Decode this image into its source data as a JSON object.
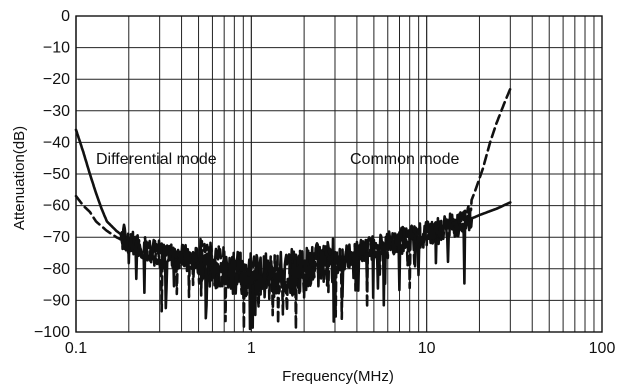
{
  "chart_data": {
    "type": "line",
    "title": "",
    "xlabel": "Frequency(MHz)",
    "ylabel": "Attenuation(dB)",
    "x_scale": "log",
    "xlim": [
      0.1,
      100
    ],
    "ylim": [
      -100,
      0
    ],
    "x_tick_labels": [
      "0.1",
      "1",
      "10",
      "100"
    ],
    "x_tick_values": [
      0.1,
      1,
      10,
      100
    ],
    "y_tick_labels": [
      "0",
      "−10",
      "−20",
      "−30",
      "−40",
      "−50",
      "−60",
      "−70",
      "−80",
      "−90",
      "−100"
    ],
    "y_tick_values": [
      0,
      -10,
      -20,
      -30,
      -40,
      -50,
      -60,
      -70,
      -80,
      -90,
      -100
    ],
    "grid": true,
    "legend": "none",
    "annotations": [
      "Differential mode",
      "Common mode"
    ],
    "series": [
      {
        "style": "solid",
        "color": "#111111",
        "x": [
          0.1,
          0.11,
          0.12,
          0.13,
          0.14,
          0.15,
          0.17,
          0.2,
          0.25,
          0.3,
          0.4,
          0.5,
          0.6,
          0.7,
          0.8,
          1.0,
          1.2,
          1.5,
          2.0,
          2.5,
          3.0,
          4.0,
          5.0,
          6.0,
          8.0,
          10,
          12,
          15,
          20,
          25,
          30
        ],
        "y": [
          -36,
          -43,
          -50,
          -56,
          -61,
          -65,
          -68,
          -71,
          -73,
          -75,
          -76,
          -77,
          -79,
          -80,
          -81,
          -82,
          -82,
          -81,
          -80,
          -78,
          -77,
          -75,
          -73,
          -72,
          -70,
          -69,
          -67,
          -66,
          -63,
          -61,
          -59
        ]
      },
      {
        "style": "dashed",
        "color": "#111111",
        "x": [
          0.1,
          0.11,
          0.12,
          0.13,
          0.15,
          0.17,
          0.2,
          0.25,
          0.3,
          0.4,
          0.5,
          0.6,
          0.7,
          0.8,
          1.0,
          1.2,
          1.5,
          2.0,
          2.5,
          3.0,
          4.0,
          5.0,
          6.0,
          8.0,
          10,
          12,
          15,
          17,
          19,
          21,
          23,
          25,
          28,
          30
        ],
        "y": [
          -57,
          -60,
          -62,
          -65,
          -68,
          -70,
          -72,
          -74,
          -76,
          -77,
          -78,
          -79,
          -80,
          -81,
          -82,
          -82,
          -82,
          -81,
          -79,
          -78,
          -76,
          -74,
          -73,
          -71,
          -70,
          -68,
          -66,
          -62,
          -55,
          -48,
          -40,
          -34,
          -27,
          -23
        ]
      }
    ]
  }
}
